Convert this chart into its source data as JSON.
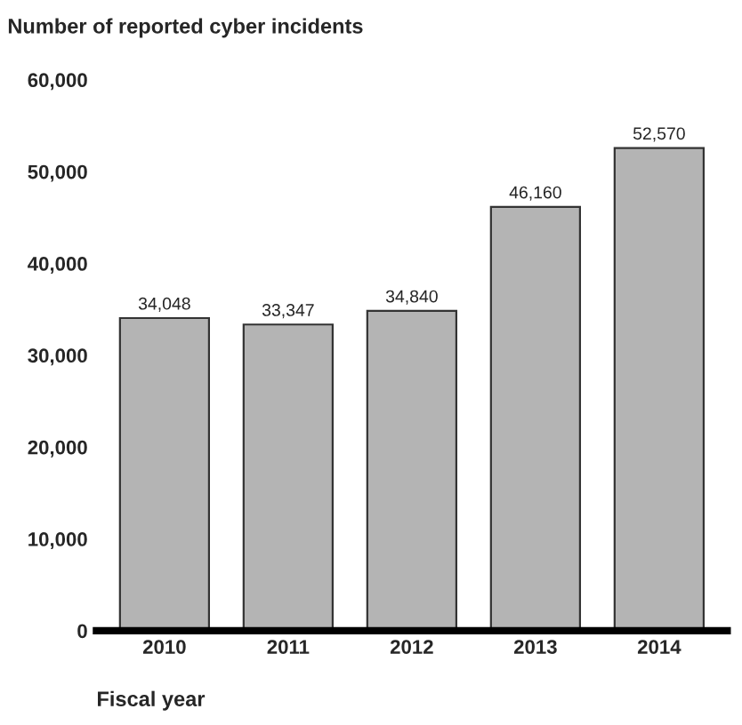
{
  "chart_data": {
    "type": "bar",
    "ylabel": "Number of reported cyber incidents",
    "xlabel": "Fiscal year",
    "categories": [
      "2010",
      "2011",
      "2012",
      "2013",
      "2014"
    ],
    "values": [
      34048,
      33347,
      34840,
      46160,
      52570
    ],
    "value_labels": [
      "34,048",
      "33,347",
      "34,840",
      "46,160",
      "52,570"
    ],
    "color": "#b4b4b4",
    "ylim": [
      0,
      60000
    ],
    "yticks": [
      {
        "value": 0,
        "label": "0"
      },
      {
        "value": 10000,
        "label": "10,000"
      },
      {
        "value": 20000,
        "label": "20,000"
      },
      {
        "value": 30000,
        "label": "30,000"
      },
      {
        "value": 40000,
        "label": "40,000"
      },
      {
        "value": 50000,
        "label": "50,000"
      },
      {
        "value": 60000,
        "label": "60,000"
      }
    ],
    "grid": false,
    "legend": false
  }
}
